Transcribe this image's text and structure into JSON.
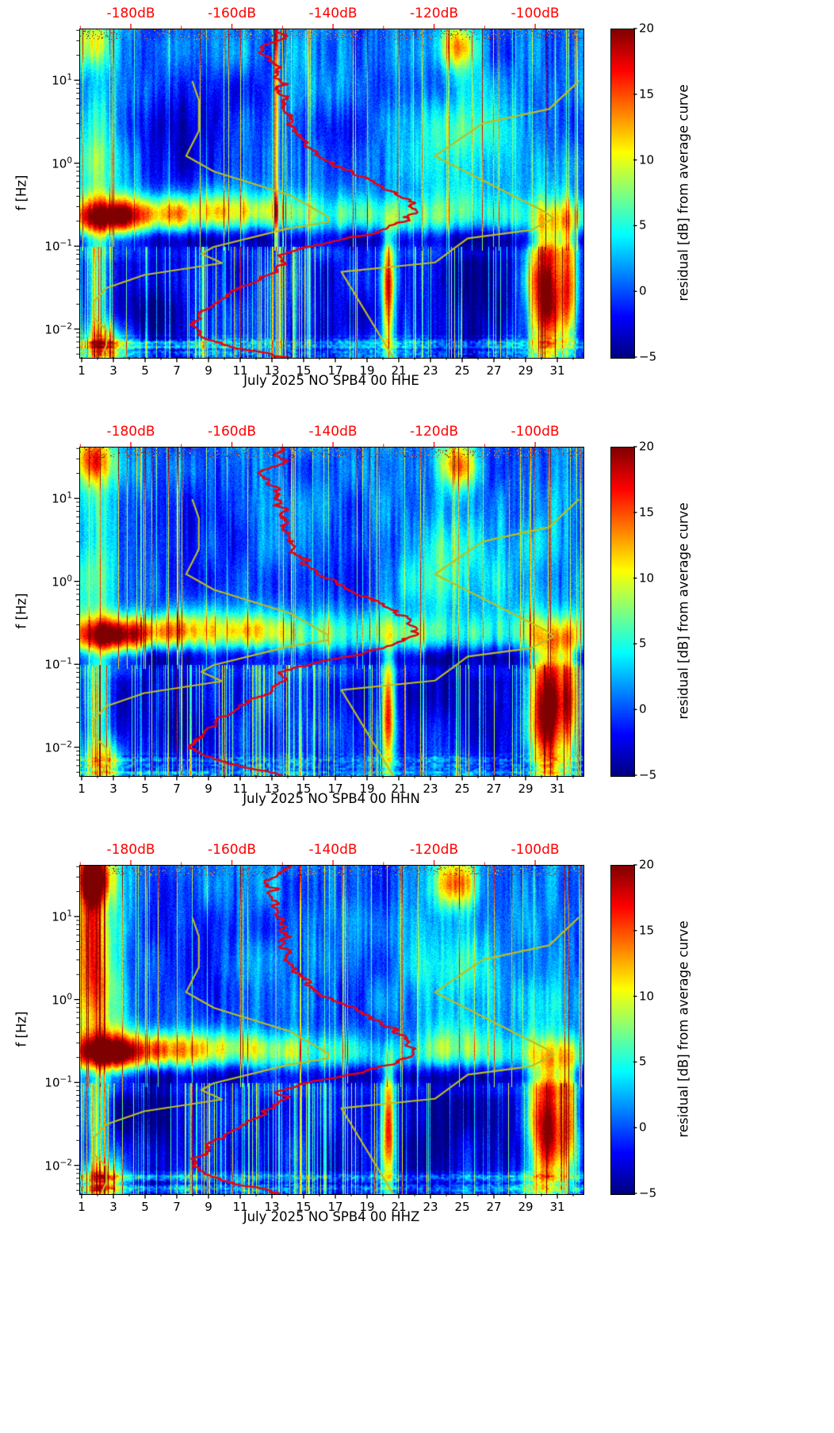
{
  "chart_data": {
    "type": "heatmap",
    "description": "Three daily power-spectral-density residual spectrograms (spectrogram of residual dB vs average curve) for station NO SPB4 00, channels HHE, HHN, HHZ, July 2025, with mean PSD curve (red) and Peterson NLNM/NHNM noise model curves (dark yellow) overlaid against the top dB axis.",
    "meta": {
      "month": "July 2025",
      "network": "NO",
      "station": "SPB4",
      "location": "00"
    },
    "colors": {
      "mean_curve": "#e8000e",
      "noise_models": "#bcbd22",
      "top_axis": "#ff0000",
      "background": "#ffffff"
    },
    "axes": {
      "x": {
        "ticks": [
          1,
          3,
          5,
          7,
          9,
          11,
          13,
          15,
          17,
          19,
          21,
          23,
          25,
          27,
          29,
          31
        ],
        "minor_ticks": [
          2,
          4,
          6,
          8,
          10,
          12,
          14,
          16,
          18,
          20,
          22,
          24,
          26,
          28,
          30,
          32
        ],
        "range": [
          0.85,
          32.6
        ],
        "unit": "day of month"
      },
      "y": {
        "label": "f [Hz]",
        "scale": "log",
        "ticks": [
          {
            "f": 10,
            "exp": "1"
          },
          {
            "f": 1,
            "exp": "0"
          },
          {
            "f": 0.1,
            "exp": "−1"
          },
          {
            "f": 0.01,
            "exp": "−2"
          }
        ],
        "range_hz": [
          0.0046,
          42
        ]
      },
      "top": {
        "ticks": [
          {
            "db": -180,
            "label": "-180dB"
          },
          {
            "db": -160,
            "label": "-160dB"
          },
          {
            "db": -140,
            "label": "-140dB"
          },
          {
            "db": -120,
            "label": "-120dB"
          },
          {
            "db": -100,
            "label": "-100dB"
          }
        ],
        "minor_ticks_db": [
          -190,
          -170,
          -150,
          -130,
          -110
        ],
        "range_db": [
          -190.2,
          -90.6
        ]
      }
    },
    "colorbar": {
      "label": "residual [dB] from average curve",
      "colormap": "jet",
      "range": [
        -5,
        20
      ],
      "ticks": [
        {
          "v": 20,
          "label": "20"
        },
        {
          "v": 15,
          "label": "15"
        },
        {
          "v": 10,
          "label": "10"
        },
        {
          "v": 5,
          "label": "5"
        },
        {
          "v": 0,
          "label": "0"
        },
        {
          "v": -5,
          "label": "−5"
        }
      ]
    },
    "panels": [
      {
        "channel": "HHE",
        "xlabel": "July 2025 NO SPB4 00 HHE",
        "pale_line_days": [
          13.4,
          15.2
        ],
        "mean_curve": [
          [
            42,
            -151
          ],
          [
            34,
            -149.5
          ],
          [
            28,
            -152.5
          ],
          [
            22,
            -155
          ],
          [
            18,
            -153
          ],
          [
            14,
            -151
          ],
          [
            11,
            -151.5
          ],
          [
            9,
            -150.5
          ],
          [
            7,
            -150
          ],
          [
            5.5,
            -149.8
          ],
          [
            4,
            -149.4
          ],
          [
            3,
            -148.8
          ],
          [
            2.2,
            -147.3
          ],
          [
            1.6,
            -145.2
          ],
          [
            1.15,
            -141.8
          ],
          [
            0.85,
            -137.8
          ],
          [
            0.65,
            -133.4
          ],
          [
            0.5,
            -129.4
          ],
          [
            0.4,
            -126.6
          ],
          [
            0.32,
            -124.6
          ],
          [
            0.26,
            -124
          ],
          [
            0.21,
            -125.4
          ],
          [
            0.17,
            -128.8
          ],
          [
            0.14,
            -133.8
          ],
          [
            0.115,
            -140.8
          ],
          [
            0.095,
            -146.8
          ],
          [
            0.08,
            -150.4
          ],
          [
            0.068,
            -149.6
          ],
          [
            0.058,
            -150.8
          ],
          [
            0.048,
            -152.8
          ],
          [
            0.038,
            -155.8
          ],
          [
            0.03,
            -159.2
          ],
          [
            0.023,
            -162.4
          ],
          [
            0.017,
            -165.4
          ],
          [
            0.013,
            -166.8
          ],
          [
            0.0105,
            -167.8
          ],
          [
            0.0085,
            -166.4
          ],
          [
            0.007,
            -162.8
          ],
          [
            0.006,
            -158.4
          ],
          [
            0.0052,
            -153.6
          ],
          [
            0.0046,
            -149.5
          ]
        ]
      },
      {
        "channel": "HHN",
        "xlabel": "July 2025 NO SPB4 00 HHN",
        "pale_line_days": [
          13.4
        ],
        "mean_curve": [
          [
            42,
            -150
          ],
          [
            34,
            -151.5
          ],
          [
            28,
            -149.5
          ],
          [
            22,
            -153.5
          ],
          [
            18,
            -154
          ],
          [
            14,
            -152
          ],
          [
            11,
            -151.5
          ],
          [
            9,
            -150.5
          ],
          [
            7,
            -150
          ],
          [
            5.5,
            -149.8
          ],
          [
            4,
            -149.4
          ],
          [
            3,
            -148.8
          ],
          [
            2.2,
            -147.3
          ],
          [
            1.6,
            -145.2
          ],
          [
            1.15,
            -141.8
          ],
          [
            0.85,
            -137.8
          ],
          [
            0.65,
            -133.4
          ],
          [
            0.5,
            -129.4
          ],
          [
            0.4,
            -126.6
          ],
          [
            0.32,
            -124.6
          ],
          [
            0.26,
            -123.6
          ],
          [
            0.21,
            -125.4
          ],
          [
            0.17,
            -128.8
          ],
          [
            0.14,
            -133.8
          ],
          [
            0.115,
            -140.8
          ],
          [
            0.095,
            -146.8
          ],
          [
            0.08,
            -150.4
          ],
          [
            0.068,
            -149.6
          ],
          [
            0.058,
            -150.8
          ],
          [
            0.048,
            -152.8
          ],
          [
            0.038,
            -155.8
          ],
          [
            0.03,
            -159.2
          ],
          [
            0.023,
            -162.4
          ],
          [
            0.017,
            -165.4
          ],
          [
            0.013,
            -166.8
          ],
          [
            0.0105,
            -167.8
          ],
          [
            0.0085,
            -166.4
          ],
          [
            0.007,
            -162.8
          ],
          [
            0.006,
            -158.4
          ],
          [
            0.0052,
            -153.6
          ],
          [
            0.0046,
            -149.5
          ]
        ]
      },
      {
        "channel": "HHZ",
        "xlabel": "July 2025 NO SPB4 00 HHZ",
        "pale_line_days": [
          13.2
        ],
        "mean_curve": [
          [
            42,
            -149.5
          ],
          [
            34,
            -150.5
          ],
          [
            28,
            -153.5
          ],
          [
            22,
            -152
          ],
          [
            18,
            -152.5
          ],
          [
            14,
            -151.5
          ],
          [
            11,
            -151.5
          ],
          [
            9,
            -150.5
          ],
          [
            7,
            -150
          ],
          [
            5.5,
            -149.8
          ],
          [
            4,
            -149.4
          ],
          [
            3,
            -148.8
          ],
          [
            2.2,
            -147.3
          ],
          [
            1.6,
            -145.2
          ],
          [
            1.15,
            -141.8
          ],
          [
            0.85,
            -137.8
          ],
          [
            0.65,
            -133.4
          ],
          [
            0.5,
            -129.4
          ],
          [
            0.4,
            -126.6
          ],
          [
            0.32,
            -124.6
          ],
          [
            0.26,
            -124.5
          ],
          [
            0.21,
            -125.4
          ],
          [
            0.17,
            -128.8
          ],
          [
            0.14,
            -133.8
          ],
          [
            0.115,
            -140.8
          ],
          [
            0.095,
            -146.8
          ],
          [
            0.08,
            -150.4
          ],
          [
            0.068,
            -149.6
          ],
          [
            0.058,
            -150.8
          ],
          [
            0.048,
            -152.8
          ],
          [
            0.038,
            -155.8
          ],
          [
            0.03,
            -159.2
          ],
          [
            0.023,
            -162.4
          ],
          [
            0.017,
            -165.4
          ],
          [
            0.013,
            -166.8
          ],
          [
            0.0105,
            -167.8
          ],
          [
            0.0085,
            -166.4
          ],
          [
            0.007,
            -162.8
          ],
          [
            0.006,
            -158.4
          ],
          [
            0.0052,
            -153.6
          ],
          [
            0.0046,
            -150.5
          ]
        ]
      }
    ],
    "noise_models": {
      "nlnm": [
        [
          10,
          -168.0
        ],
        [
          5.9,
          -166.7
        ],
        [
          2.5,
          -166.7
        ],
        [
          1.25,
          -169.2
        ],
        [
          0.81,
          -163.7
        ],
        [
          0.42,
          -148.6
        ],
        [
          0.23,
          -141.1
        ],
        [
          0.2,
          -141.1
        ],
        [
          0.167,
          -149.0
        ],
        [
          0.1,
          -163.8
        ],
        [
          0.083,
          -166.2
        ],
        [
          0.064,
          -162.1
        ],
        [
          0.046,
          -177.5
        ],
        [
          0.032,
          -185.0
        ],
        [
          0.022,
          -187.5
        ],
        [
          0.014,
          -187.5
        ],
        [
          0.01,
          -185.0
        ],
        [
          0.0065,
          -185.0
        ],
        [
          0.0046,
          -186.0
        ]
      ],
      "nhnm": [
        [
          10,
          -91.5
        ],
        [
          4.6,
          -97.4
        ],
        [
          3.1,
          -110.5
        ],
        [
          1.25,
          -120.0
        ],
        [
          0.26,
          -98.0
        ],
        [
          0.22,
          -96.5
        ],
        [
          0.16,
          -101.0
        ],
        [
          0.127,
          -113.5
        ],
        [
          0.065,
          -120.0
        ],
        [
          0.05,
          -138.5
        ],
        [
          0.0046,
          -128.2
        ]
      ]
    },
    "features": [
      {
        "name": "microseism-band",
        "day": 16.8,
        "day_sigma": 99,
        "f_hz": 0.24,
        "logf_sigma": 0.17,
        "amp": 5.5,
        "modulated": true
      },
      {
        "name": "microseism-early-peak",
        "day": 2.8,
        "day_sigma": 1.6,
        "f_hz": 0.23,
        "logf_sigma": 0.16,
        "amp": 15
      },
      {
        "name": "microseism-day6",
        "day": 6.3,
        "day_sigma": 1.7,
        "f_hz": 0.26,
        "logf_sigma": 0.15,
        "amp": 8
      },
      {
        "name": "microseism-day11",
        "day": 11.5,
        "day_sigma": 2.2,
        "f_hz": 0.28,
        "logf_sigma": 0.13,
        "amp": 4
      },
      {
        "name": "quiet-band",
        "day": 16.8,
        "day_sigma": 99,
        "f_hz": 0.125,
        "logf_sigma": 0.1,
        "amp": -4.5
      },
      {
        "name": "lowfreq-storm-day20",
        "day": 20.3,
        "day_sigma": 0.3,
        "f_hz": 0.028,
        "logf_sigma": 0.55,
        "amp": 19
      },
      {
        "name": "lowfreq-storm-day30",
        "day": 30.3,
        "day_sigma": 0.8,
        "f_hz": 0.03,
        "logf_sigma": 0.6,
        "amp": 24
      },
      {
        "name": "lowfreq-storm-day31",
        "day": 31.7,
        "day_sigma": 0.35,
        "f_hz": 0.04,
        "logf_sigma": 0.5,
        "amp": 14
      },
      {
        "name": "lowfreq-day2",
        "day": 2.0,
        "day_sigma": 0.5,
        "f_hz": 0.03,
        "logf_sigma": 0.55,
        "amp": 9
      },
      {
        "name": "highfreq-burst-day1",
        "day": 1.7,
        "day_sigma": 0.8,
        "f_hz": 30,
        "logf_sigma": 0.22,
        "amp": [
          9,
          15,
          20
        ]
      },
      {
        "name": "highfreq-burst-day24",
        "day": 24.6,
        "day_sigma": 0.9,
        "f_hz": 26,
        "logf_sigma": 0.2,
        "amp": 13
      },
      {
        "name": "midfreq-cloud-day24",
        "day": 24.2,
        "day_sigma": 2.6,
        "f_hz": 1.6,
        "logf_sigma": 0.5,
        "amp": 4.5
      },
      {
        "name": "left-edge-elevated",
        "day": 1.9,
        "day_sigma": 1.1,
        "f_hz": 1.5,
        "logf_sigma": 0.6,
        "amp": [
          6,
          6,
          10
        ]
      },
      {
        "name": "hhz-left-streak",
        "day": 1.5,
        "day_sigma": 0.7,
        "f_hz": 8,
        "logf_sigma": 0.7,
        "amp": [
          0,
          0,
          9
        ]
      },
      {
        "name": "dark-cloud-day7",
        "day": 7.5,
        "day_sigma": 2.3,
        "f_hz": 3.5,
        "logf_sigma": 0.5,
        "amp": -3
      },
      {
        "name": "dark-cloud-day18",
        "day": 18.5,
        "day_sigma": 2.4,
        "f_hz": 1.1,
        "logf_sigma": 0.5,
        "amp": -2.5
      },
      {
        "name": "dark-low-left",
        "day": 5,
        "day_sigma": 2.5,
        "f_hz": 0.04,
        "logf_sigma": 0.5,
        "amp": -2.5
      },
      {
        "name": "dark-low-day25",
        "day": 25,
        "day_sigma": 3,
        "f_hz": 0.04,
        "logf_sigma": 0.45,
        "amp": -2
      },
      {
        "name": "bottomleft-burst",
        "day": 2.4,
        "day_sigma": 0.9,
        "f_hz": 0.0065,
        "logf_sigma": 0.2,
        "amp": 12
      }
    ]
  }
}
